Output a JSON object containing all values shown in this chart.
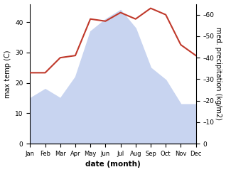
{
  "months": [
    "Jan",
    "Feb",
    "Mar",
    "Apr",
    "May",
    "Jun",
    "Jul",
    "Aug",
    "Sep",
    "Oct",
    "Nov",
    "Dec"
  ],
  "max_temp": [
    15,
    18,
    15,
    22,
    37,
    41,
    44,
    38,
    25,
    21,
    13,
    13
  ],
  "precipitation": [
    33,
    33,
    40,
    41,
    58,
    57,
    61,
    58,
    63,
    60,
    46,
    41
  ],
  "temp_fill_color": "#c8d4f0",
  "precip_color": "#c0392b",
  "xlabel": "date (month)",
  "ylabel_left": "max temp (C)",
  "ylabel_right": "med. precipitation (kg/m2)",
  "ylim_left": [
    0,
    46
  ],
  "ylim_right": [
    0,
    65
  ],
  "yticks_left": [
    0,
    10,
    20,
    30,
    40
  ],
  "yticks_right": [
    0,
    10,
    20,
    30,
    40,
    50,
    60
  ],
  "background_color": "#ffffff"
}
